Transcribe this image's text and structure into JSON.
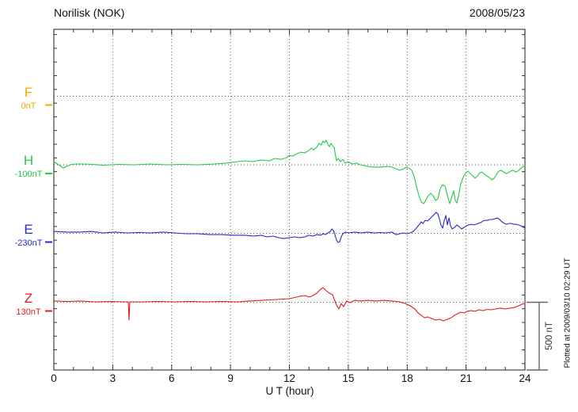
{
  "header": {
    "title": "Norilisk (NOK)",
    "date": "2008/05/23"
  },
  "x_axis": {
    "label": "U T (hour)",
    "ticks": [
      "0",
      "3",
      "6",
      "9",
      "12",
      "15",
      "18",
      "21",
      "24"
    ]
  },
  "scale_bar": {
    "label": "500 nT"
  },
  "footer_note": "Plotted at 2009/03/10 02:29 UT",
  "channels": [
    {
      "id": "F",
      "label": "F",
      "baseline_label": "0nT",
      "color": "#FFA500"
    },
    {
      "id": "H",
      "label": "H",
      "baseline_label": "-100nT",
      "color": "#22CC44"
    },
    {
      "id": "E",
      "label": "E",
      "baseline_label": "-230nT",
      "color": "#2828C8"
    },
    {
      "id": "Z",
      "label": "Z",
      "baseline_label": "130nT",
      "color": "#E01E1E"
    }
  ],
  "chart_data": {
    "type": "line",
    "title": "Norilisk (NOK) magnetogram 2008/05/23",
    "xlabel": "U T (hour)",
    "x_range": [
      0,
      24
    ],
    "x_tick_interval_hours": 1,
    "x_gridlines_hours": [
      3,
      6,
      9,
      12,
      15,
      18,
      21
    ],
    "y_tick_interval_nT": 100,
    "baseline_separation_nT": 500,
    "scale_bar_nT": 500,
    "grid": "dotted",
    "series": [
      {
        "name": "F",
        "color": "#FFA500",
        "baseline_label": "0nT",
        "points": []
      },
      {
        "name": "H",
        "color": "#22CC44",
        "baseline_label": "-100nT",
        "points": [
          [
            0,
            23
          ],
          [
            0.3,
            -6
          ],
          [
            0.48,
            -23
          ],
          [
            0.65,
            -12
          ],
          [
            0.89,
            3
          ],
          [
            1.2,
            6
          ],
          [
            1.69,
            6
          ],
          [
            2.5,
            -3
          ],
          [
            3.31,
            3
          ],
          [
            4.11,
            0
          ],
          [
            4.92,
            6
          ],
          [
            5.73,
            0
          ],
          [
            6.53,
            3
          ],
          [
            7.34,
            0
          ],
          [
            8.15,
            6
          ],
          [
            8.75,
            12
          ],
          [
            9.36,
            23
          ],
          [
            9.76,
            29
          ],
          [
            10.16,
            23
          ],
          [
            10.57,
            35
          ],
          [
            10.97,
            29
          ],
          [
            11.25,
            46
          ],
          [
            11.58,
            40
          ],
          [
            11.86,
            52
          ],
          [
            11.98,
            69
          ],
          [
            12.18,
            64
          ],
          [
            12.38,
            81
          ],
          [
            12.58,
            92
          ],
          [
            12.79,
            87
          ],
          [
            12.99,
            104
          ],
          [
            13.11,
            121
          ],
          [
            13.23,
            110
          ],
          [
            13.39,
            127
          ],
          [
            13.51,
            156
          ],
          [
            13.63,
            145
          ],
          [
            13.71,
            173
          ],
          [
            13.79,
            162
          ],
          [
            13.88,
            179
          ],
          [
            13.96,
            150
          ],
          [
            14.04,
            133
          ],
          [
            14.12,
            156
          ],
          [
            14.2,
            139
          ],
          [
            14.28,
            127
          ],
          [
            14.4,
            29
          ],
          [
            14.48,
            46
          ],
          [
            14.6,
            23
          ],
          [
            14.72,
            40
          ],
          [
            14.84,
            12
          ],
          [
            15,
            23
          ],
          [
            15.21,
            6
          ],
          [
            15.41,
            12
          ],
          [
            15.61,
            0
          ],
          [
            15.81,
            -6
          ],
          [
            16.01,
            -12
          ],
          [
            16.22,
            -17
          ],
          [
            16.62,
            -17
          ],
          [
            17.02,
            -12
          ],
          [
            17.22,
            -17
          ],
          [
            17.43,
            -29
          ],
          [
            17.63,
            -40
          ],
          [
            17.83,
            -29
          ],
          [
            17.95,
            -17
          ],
          [
            18.07,
            -23
          ],
          [
            18.23,
            -40
          ],
          [
            18.35,
            -81
          ],
          [
            18.47,
            -156
          ],
          [
            18.6,
            -225
          ],
          [
            18.72,
            -272
          ],
          [
            18.84,
            -283
          ],
          [
            18.96,
            -254
          ],
          [
            19.08,
            -225
          ],
          [
            19.2,
            -208
          ],
          [
            19.32,
            -225
          ],
          [
            19.44,
            -260
          ],
          [
            19.56,
            -249
          ],
          [
            19.69,
            -173
          ],
          [
            19.81,
            -145
          ],
          [
            19.93,
            -156
          ],
          [
            20.05,
            -225
          ],
          [
            20.17,
            -283
          ],
          [
            20.29,
            -225
          ],
          [
            20.37,
            -191
          ],
          [
            20.45,
            -260
          ],
          [
            20.53,
            -278
          ],
          [
            20.61,
            -231
          ],
          [
            20.73,
            -139
          ],
          [
            20.85,
            -92
          ],
          [
            20.98,
            -58
          ],
          [
            21.1,
            -46
          ],
          [
            21.22,
            -64
          ],
          [
            21.34,
            -81
          ],
          [
            21.46,
            -98
          ],
          [
            21.58,
            -81
          ],
          [
            21.7,
            -58
          ],
          [
            21.82,
            -52
          ],
          [
            21.94,
            -69
          ],
          [
            22.06,
            -81
          ],
          [
            22.18,
            -92
          ],
          [
            22.31,
            -110
          ],
          [
            22.43,
            -98
          ],
          [
            22.55,
            -69
          ],
          [
            22.67,
            -46
          ],
          [
            22.79,
            -40
          ],
          [
            22.91,
            -52
          ],
          [
            23.03,
            -64
          ],
          [
            23.15,
            -58
          ],
          [
            23.27,
            -46
          ],
          [
            23.39,
            -40
          ],
          [
            23.52,
            -52
          ],
          [
            23.64,
            -46
          ],
          [
            23.76,
            -29
          ],
          [
            23.88,
            -17
          ],
          [
            24,
            -6
          ]
        ]
      },
      {
        "name": "E",
        "color": "#2828C8",
        "baseline_label": "-230nT",
        "points": [
          [
            0,
            14
          ],
          [
            0.69,
            9
          ],
          [
            1.29,
            9
          ],
          [
            1.9,
            14
          ],
          [
            2.5,
            3
          ],
          [
            3.11,
            9
          ],
          [
            3.71,
            3
          ],
          [
            4.32,
            6
          ],
          [
            4.92,
            3
          ],
          [
            5.53,
            9
          ],
          [
            6.13,
            3
          ],
          [
            6.74,
            -3
          ],
          [
            7.34,
            -3
          ],
          [
            7.95,
            -9
          ],
          [
            8.55,
            -9
          ],
          [
            9.16,
            -14
          ],
          [
            9.76,
            -14
          ],
          [
            10.16,
            -20
          ],
          [
            10.57,
            -14
          ],
          [
            10.85,
            -26
          ],
          [
            11.17,
            -20
          ],
          [
            11.46,
            -32
          ],
          [
            11.7,
            -38
          ],
          [
            11.98,
            -32
          ],
          [
            12.26,
            -26
          ],
          [
            12.5,
            -32
          ],
          [
            12.79,
            -26
          ],
          [
            12.99,
            -14
          ],
          [
            13.19,
            -20
          ],
          [
            13.39,
            -9
          ],
          [
            13.59,
            -14
          ],
          [
            13.71,
            -3
          ],
          [
            13.84,
            -9
          ],
          [
            13.96,
            3
          ],
          [
            14.08,
            14
          ],
          [
            14.16,
            32
          ],
          [
            14.24,
            20
          ],
          [
            14.32,
            -9
          ],
          [
            14.4,
            -49
          ],
          [
            14.48,
            -66
          ],
          [
            14.56,
            -61
          ],
          [
            14.64,
            -26
          ],
          [
            14.72,
            -3
          ],
          [
            14.84,
            9
          ],
          [
            15,
            3
          ],
          [
            15.33,
            9
          ],
          [
            15.65,
            3
          ],
          [
            15.97,
            9
          ],
          [
            16.3,
            3
          ],
          [
            16.62,
            6
          ],
          [
            16.94,
            3
          ],
          [
            17.22,
            9
          ],
          [
            17.43,
            -9
          ],
          [
            17.63,
            -3
          ],
          [
            17.83,
            3
          ],
          [
            17.99,
            -3
          ],
          [
            18.15,
            3
          ],
          [
            18.31,
            14
          ],
          [
            18.47,
            38
          ],
          [
            18.6,
            61
          ],
          [
            18.72,
            84
          ],
          [
            18.8,
            72
          ],
          [
            18.92,
            95
          ],
          [
            19.04,
            90
          ],
          [
            19.16,
            107
          ],
          [
            19.28,
            124
          ],
          [
            19.4,
            142
          ],
          [
            19.48,
            153
          ],
          [
            19.56,
            142
          ],
          [
            19.64,
            107
          ],
          [
            19.72,
            61
          ],
          [
            19.81,
            38
          ],
          [
            19.89,
            95
          ],
          [
            19.97,
            130
          ],
          [
            20.05,
            61
          ],
          [
            20.13,
            113
          ],
          [
            20.21,
            55
          ],
          [
            20.29,
            32
          ],
          [
            20.41,
            43
          ],
          [
            20.53,
            61
          ],
          [
            20.65,
            49
          ],
          [
            20.77,
            32
          ],
          [
            20.9,
            43
          ],
          [
            21.02,
            55
          ],
          [
            21.14,
            61
          ],
          [
            21.26,
            66
          ],
          [
            21.38,
            61
          ],
          [
            21.5,
            66
          ],
          [
            21.62,
            72
          ],
          [
            21.74,
            78
          ],
          [
            21.86,
            90
          ],
          [
            21.98,
            95
          ],
          [
            22.1,
            95
          ],
          [
            22.23,
            101
          ],
          [
            22.35,
            101
          ],
          [
            22.47,
            107
          ],
          [
            22.59,
            113
          ],
          [
            22.71,
            101
          ],
          [
            22.83,
            84
          ],
          [
            22.95,
            72
          ],
          [
            23.07,
            66
          ],
          [
            23.19,
            72
          ],
          [
            23.31,
            72
          ],
          [
            23.43,
            66
          ],
          [
            23.55,
            66
          ],
          [
            23.68,
            61
          ],
          [
            23.8,
            55
          ],
          [
            23.92,
            43
          ],
          [
            24,
            43
          ]
        ]
      },
      {
        "name": "Z",
        "color": "#E01E1E",
        "baseline_label": "130nT",
        "points": [
          [
            0,
            9
          ],
          [
            0.69,
            6
          ],
          [
            1.29,
            9
          ],
          [
            2.1,
            3
          ],
          [
            2.9,
            6
          ],
          [
            3.63,
            3
          ],
          [
            3.79,
            3
          ],
          [
            3.83,
            -130
          ],
          [
            3.87,
            3
          ],
          [
            4.52,
            3
          ],
          [
            5.32,
            6
          ],
          [
            6.13,
            3
          ],
          [
            6.94,
            6
          ],
          [
            7.74,
            3
          ],
          [
            8.55,
            6
          ],
          [
            9.36,
            3
          ],
          [
            9.96,
            9
          ],
          [
            10.57,
            14
          ],
          [
            11.38,
            20
          ],
          [
            11.98,
            26
          ],
          [
            12.18,
            32
          ],
          [
            12.5,
            43
          ],
          [
            12.79,
            49
          ],
          [
            12.99,
            38
          ],
          [
            13.11,
            43
          ],
          [
            13.39,
            66
          ],
          [
            13.59,
            95
          ],
          [
            13.71,
            107
          ],
          [
            13.88,
            84
          ],
          [
            14.04,
            66
          ],
          [
            14.2,
            55
          ],
          [
            14.4,
            -20
          ],
          [
            14.52,
            -49
          ],
          [
            14.64,
            -9
          ],
          [
            14.76,
            -32
          ],
          [
            14.92,
            9
          ],
          [
            15.08,
            -3
          ],
          [
            15.33,
            14
          ],
          [
            15.61,
            9
          ],
          [
            16.01,
            14
          ],
          [
            16.42,
            9
          ],
          [
            16.82,
            14
          ],
          [
            17.22,
            9
          ],
          [
            17.63,
            3
          ],
          [
            17.91,
            -9
          ],
          [
            18.15,
            -26
          ],
          [
            18.39,
            -49
          ],
          [
            18.56,
            -78
          ],
          [
            18.72,
            -95
          ],
          [
            18.88,
            -113
          ],
          [
            19.04,
            -107
          ],
          [
            19.24,
            -118
          ],
          [
            19.44,
            -130
          ],
          [
            19.65,
            -124
          ],
          [
            19.85,
            -136
          ],
          [
            20.05,
            -124
          ],
          [
            20.25,
            -113
          ],
          [
            20.41,
            -95
          ],
          [
            20.57,
            -84
          ],
          [
            20.73,
            -72
          ],
          [
            20.9,
            -78
          ],
          [
            21.06,
            -66
          ],
          [
            21.26,
            -61
          ],
          [
            21.46,
            -66
          ],
          [
            21.66,
            -55
          ],
          [
            21.86,
            -61
          ],
          [
            22.06,
            -52
          ],
          [
            22.27,
            -55
          ],
          [
            22.51,
            -49
          ],
          [
            22.75,
            -43
          ],
          [
            22.99,
            -49
          ],
          [
            23.23,
            -43
          ],
          [
            23.47,
            -38
          ],
          [
            23.68,
            -26
          ],
          [
            23.84,
            -14
          ],
          [
            24,
            -9
          ]
        ]
      }
    ]
  }
}
